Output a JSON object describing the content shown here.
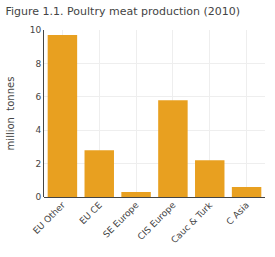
{
  "chart_data": {
    "type": "bar",
    "title": "Figure 1.1. Poultry meat production (2010)",
    "categories": [
      "EU Other",
      "EU CE",
      "SE Europe",
      "CIS Europe",
      "Cauc & Turk",
      "C Asia"
    ],
    "values": [
      9.7,
      2.8,
      0.3,
      5.8,
      2.2,
      0.6
    ],
    "color": "#E8A020",
    "ylabel": "million  tonnes",
    "ylim": [
      0,
      10
    ],
    "yticks": [
      0,
      2,
      4,
      6,
      8,
      10
    ],
    "grid": true
  }
}
